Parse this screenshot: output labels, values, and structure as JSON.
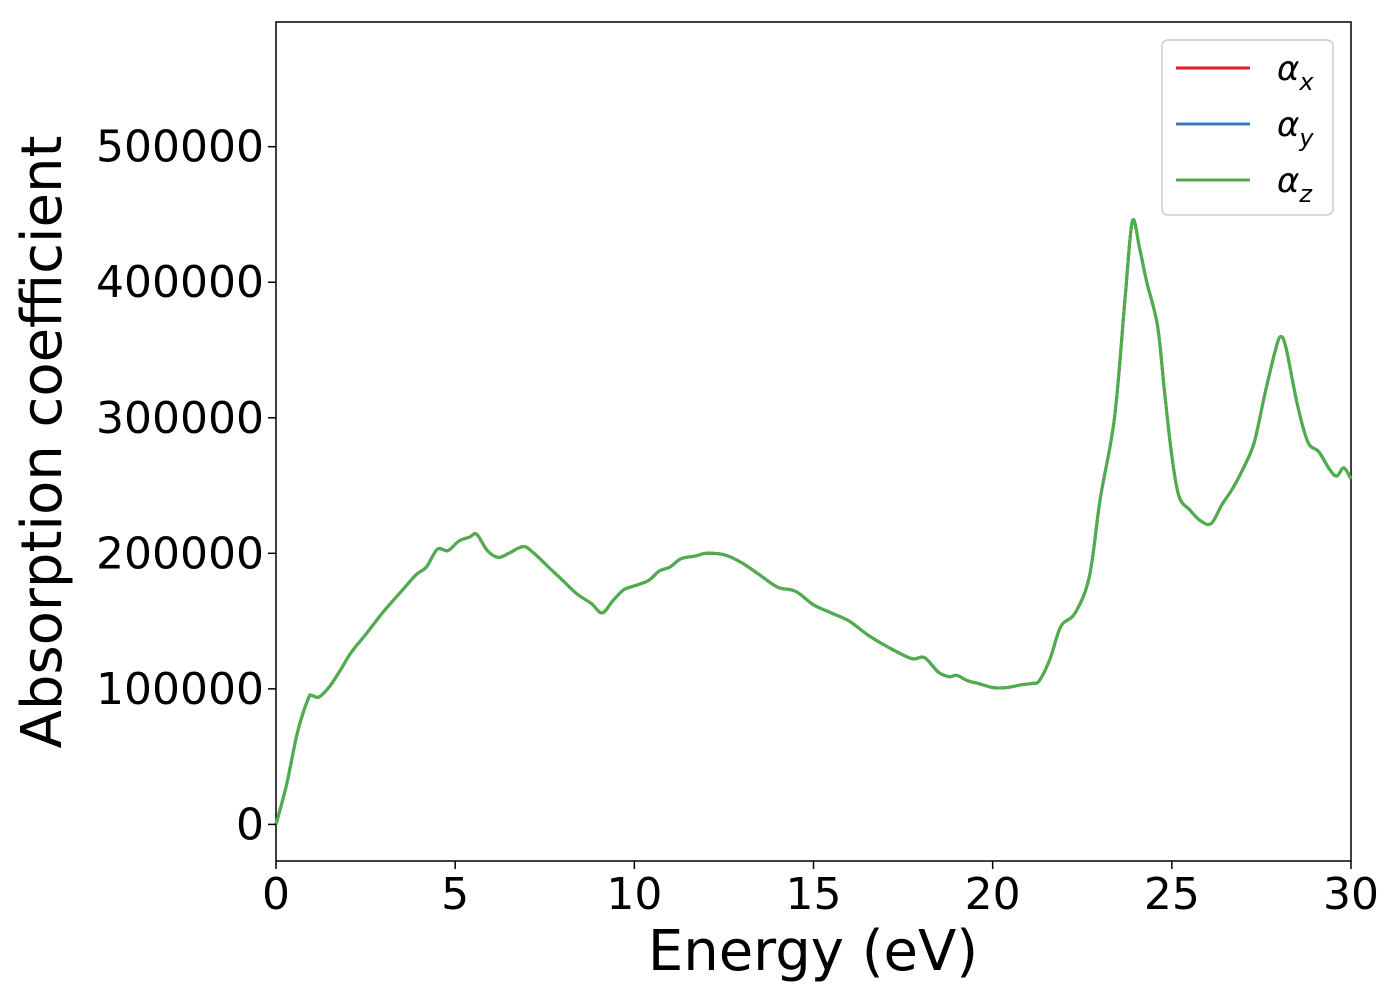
{
  "chart_data": {
    "type": "line",
    "title": "",
    "xlabel": "Energy (eV)",
    "ylabel": "Absorption coefficient",
    "xlim": [
      0,
      30
    ],
    "ylim": [
      -27000,
      592000
    ],
    "xticks": [
      0,
      5,
      10,
      15,
      20,
      25,
      30
    ],
    "yticks": [
      0,
      100000,
      200000,
      300000,
      400000,
      500000
    ],
    "xtick_labels": [
      "0",
      "5",
      "10",
      "15",
      "20",
      "25",
      "30"
    ],
    "ytick_labels": [
      "0",
      "100000",
      "200000",
      "300000",
      "400000",
      "500000"
    ],
    "grid": false,
    "legend_position": "top-right",
    "x": [
      0,
      0.3,
      0.6,
      0.9,
      1.0,
      1.2,
      1.5,
      1.8,
      2.1,
      2.5,
      3.0,
      3.5,
      3.9,
      4.2,
      4.5,
      4.8,
      5.1,
      5.4,
      5.6,
      5.9,
      6.2,
      6.5,
      6.9,
      7.2,
      7.6,
      8.0,
      8.4,
      8.8,
      9.1,
      9.4,
      9.7,
      10.0,
      10.4,
      10.7,
      11.0,
      11.3,
      11.7,
      12.0,
      12.5,
      13.0,
      13.5,
      14.0,
      14.5,
      15.0,
      15.5,
      16.0,
      16.5,
      17.0,
      17.5,
      17.8,
      18.1,
      18.5,
      18.8,
      19.0,
      19.3,
      19.6,
      20.0,
      20.4,
      20.8,
      21.1,
      21.3,
      21.6,
      21.9,
      22.3,
      22.7,
      23.0,
      23.4,
      23.7,
      23.9,
      24.1,
      24.3,
      24.6,
      24.8,
      25.0,
      25.2,
      25.5,
      25.8,
      26.1,
      26.4,
      26.7,
      27.0,
      27.3,
      27.6,
      27.9,
      28.05,
      28.2,
      28.5,
      28.8,
      29.1,
      29.4,
      29.6,
      29.8,
      30.0
    ],
    "series": [
      {
        "name": "αx",
        "color": "#e41a1c",
        "values": [
          0,
          30000,
          68000,
          93000,
          95000,
          94000,
          102000,
          114000,
          127000,
          140000,
          157000,
          172000,
          184000,
          190000,
          203000,
          202000,
          209000,
          212000,
          214000,
          202000,
          197000,
          200000,
          205000,
          200000,
          190000,
          180000,
          170000,
          163000,
          156000,
          165000,
          173000,
          176000,
          180000,
          187000,
          190000,
          196000,
          198000,
          200000,
          199000,
          193000,
          184000,
          175000,
          172000,
          162000,
          156000,
          150000,
          140000,
          132000,
          125000,
          122000,
          123000,
          112000,
          109000,
          110000,
          106000,
          104000,
          101000,
          101000,
          103000,
          104000,
          106000,
          122000,
          146000,
          156000,
          183000,
          240000,
          300000,
          390000,
          445000,
          425000,
          400000,
          368000,
          318000,
          272000,
          242000,
          232000,
          224000,
          222000,
          236000,
          248000,
          263000,
          282000,
          318000,
          351000,
          360000,
          350000,
          310000,
          282000,
          275000,
          262000,
          257000,
          263000,
          255000
        ]
      },
      {
        "name": "αy",
        "color": "#377eb8",
        "values": [
          0,
          30000,
          68000,
          93000,
          95000,
          94000,
          102000,
          114000,
          127000,
          140000,
          157000,
          172000,
          184000,
          190000,
          203000,
          202000,
          209000,
          212000,
          214000,
          202000,
          197000,
          200000,
          205000,
          200000,
          190000,
          180000,
          170000,
          163000,
          156000,
          165000,
          173000,
          176000,
          180000,
          187000,
          190000,
          196000,
          198000,
          200000,
          199000,
          193000,
          184000,
          175000,
          172000,
          162000,
          156000,
          150000,
          140000,
          132000,
          125000,
          122000,
          123000,
          112000,
          109000,
          110000,
          106000,
          104000,
          101000,
          101000,
          103000,
          104000,
          106000,
          122000,
          146000,
          156000,
          183000,
          240000,
          300000,
          390000,
          445000,
          425000,
          400000,
          368000,
          318000,
          272000,
          242000,
          232000,
          224000,
          222000,
          236000,
          248000,
          263000,
          282000,
          318000,
          351000,
          360000,
          350000,
          310000,
          282000,
          275000,
          262000,
          257000,
          263000,
          255000
        ]
      },
      {
        "name": "αz",
        "color": "#4daf4a",
        "values": [
          0,
          30000,
          68000,
          93000,
          95000,
          94000,
          102000,
          114000,
          127000,
          140000,
          157000,
          172000,
          184000,
          190000,
          203000,
          202000,
          209000,
          212000,
          214000,
          202000,
          197000,
          200000,
          205000,
          200000,
          190000,
          180000,
          170000,
          163000,
          156000,
          165000,
          173000,
          176000,
          180000,
          187000,
          190000,
          196000,
          198000,
          200000,
          199000,
          193000,
          184000,
          175000,
          172000,
          162000,
          156000,
          150000,
          140000,
          132000,
          125000,
          122000,
          123000,
          112000,
          109000,
          110000,
          106000,
          104000,
          101000,
          101000,
          103000,
          104000,
          106000,
          122000,
          146000,
          156000,
          183000,
          240000,
          300000,
          390000,
          445000,
          425000,
          400000,
          368000,
          318000,
          272000,
          242000,
          232000,
          224000,
          222000,
          236000,
          248000,
          263000,
          282000,
          318000,
          351000,
          360000,
          350000,
          310000,
          282000,
          275000,
          262000,
          257000,
          263000,
          255000
        ]
      }
    ],
    "legend": [
      {
        "base": "α",
        "sub": "x",
        "color": "#e41a1c"
      },
      {
        "base": "α",
        "sub": "y",
        "color": "#377eb8"
      },
      {
        "base": "α",
        "sub": "z",
        "color": "#4daf4a"
      }
    ]
  }
}
